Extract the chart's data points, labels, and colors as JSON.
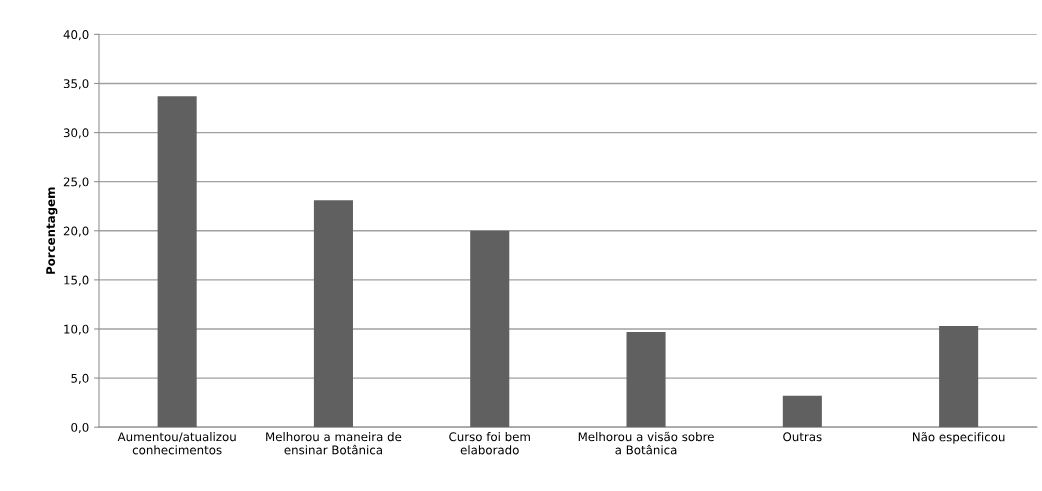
{
  "chart_data": {
    "type": "bar",
    "ylabel": "Porcentagem",
    "categories": [
      "Aumentou/atualizou\nconhecimentos",
      "Melhorou a maneira de\nensinar Botânica",
      "Curso foi bem\nelaborado",
      "Melhorou a visão sobre\na Botânica",
      "Outras",
      "Não especificou"
    ],
    "values": [
      33.7,
      23.1,
      20.0,
      9.7,
      3.2,
      10.3
    ],
    "color": "#606060",
    "ylim": [
      0,
      40
    ],
    "yticks": [
      {
        "value": 0,
        "label": "0,0"
      },
      {
        "value": 5,
        "label": "5,0"
      },
      {
        "value": 10,
        "label": "10,0"
      },
      {
        "value": 15,
        "label": "15,0"
      },
      {
        "value": 20,
        "label": "20,0"
      },
      {
        "value": 25,
        "label": "25,0"
      },
      {
        "value": 30,
        "label": "30,0"
      },
      {
        "value": 35,
        "label": "35,0"
      },
      {
        "value": 40,
        "label": "40,0"
      }
    ],
    "grid": "y"
  }
}
